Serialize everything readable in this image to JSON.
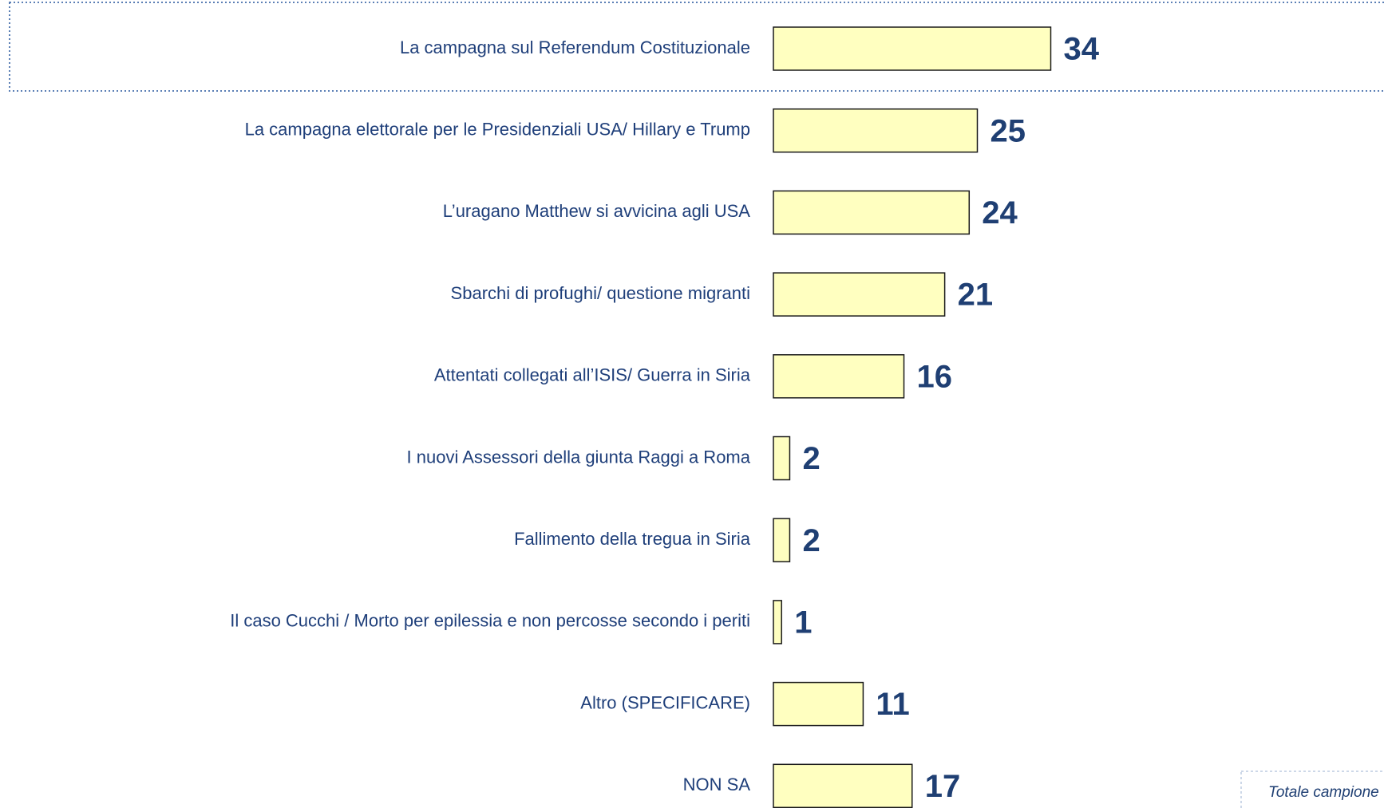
{
  "chart_data": {
    "type": "bar",
    "orientation": "horizontal",
    "categories": [
      "La campagna sul Referendum Costituzionale",
      "La campagna elettorale per le Presidenziali USA/ Hillary e Trump",
      "L’uragano Matthew si avvicina agli USA",
      "Sbarchi di profughi/ questione migranti",
      "Attentati collegati all’ISIS/  Guerra in Siria",
      "I nuovi Assessori della giunta Raggi a Roma",
      "Fallimento della tregua in Siria",
      "Il caso Cucchi / Morto per epilessia e non percosse secondo i periti",
      "Altro (SPECIFICARE)",
      "NON SA"
    ],
    "values": [
      34,
      25,
      24,
      21,
      16,
      2,
      2,
      1,
      11,
      17
    ],
    "color": "#ffffc0",
    "note": "Totale campione"
  }
}
